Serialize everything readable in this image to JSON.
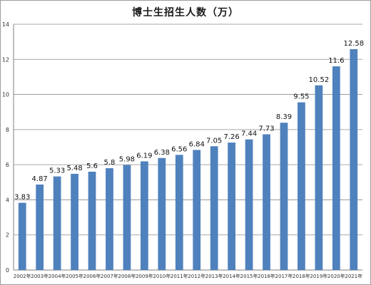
{
  "chart_data": {
    "type": "bar",
    "title": "博士生招生人数（万）",
    "categories": [
      "2002年",
      "2003年",
      "2004年",
      "2005年",
      "2006年",
      "2007年",
      "2008年",
      "2009年",
      "2010年",
      "2011年",
      "2012年",
      "2013年",
      "2014年",
      "2015年",
      "2016年",
      "2017年",
      "2018年",
      "2019年",
      "2020年",
      "2021年"
    ],
    "values": [
      3.83,
      4.87,
      5.33,
      5.48,
      5.6,
      5.8,
      5.98,
      6.19,
      6.38,
      6.56,
      6.84,
      7.05,
      7.26,
      7.44,
      7.73,
      8.39,
      9.55,
      10.52,
      11.6,
      12.58
    ],
    "data_labels": [
      "3.83",
      "4.87",
      "5.33",
      "5.48",
      "5.6",
      "5.8",
      "5.98",
      "6.19",
      "6.38",
      "6.56",
      "6.84",
      "7.05",
      "7.26",
      "7.44",
      "7.73",
      "8.39",
      "9.55",
      "10.52",
      "11.6",
      "12.58"
    ],
    "y_ticks": [
      0,
      2,
      4,
      6,
      8,
      10,
      12,
      14
    ],
    "ylim": [
      0,
      14
    ],
    "xlabel": "",
    "ylabel": "",
    "grid": true,
    "legend": false,
    "bar_color": "#4f81bd",
    "grid_color": "#8c8c8c"
  }
}
